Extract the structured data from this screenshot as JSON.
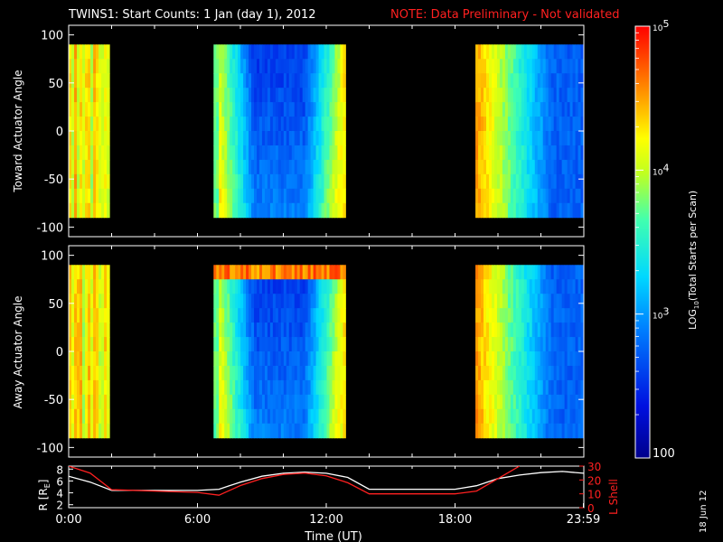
{
  "header": {
    "title": "TWINS1: Start Counts:  1 Jan (day   1), 2012",
    "note": "NOTE: Data Preliminary - Not validated"
  },
  "side_date": "18 Jun 12",
  "colorbar": {
    "title_main": "LOG",
    "title_sub": "10",
    "title_rest": "(Total Starts per Scan)",
    "ticks": [
      {
        "exp": "5"
      },
      {
        "exp": "4"
      },
      {
        "exp": "3"
      }
    ],
    "bottom_label": "100",
    "tick_base": "10",
    "log_range": [
      2,
      5
    ]
  },
  "chart_data": [
    {
      "type": "heatmap",
      "ylabel": "Toward Actuator Angle",
      "yticks": [
        "100",
        "50",
        "0",
        "-50",
        "-100"
      ],
      "ylim": [
        -110,
        110
      ],
      "data_ylim": [
        -90,
        90
      ],
      "xlim": [
        0,
        24
      ],
      "coverage_hours": [
        [
          0.0,
          1.9
        ],
        [
          6.75,
          12.9
        ],
        [
          18.95,
          23.98
        ]
      ],
      "description_values": "log10 counts roughly 2.7-3.9 (blue-cyan) mid-pass, rising to ~4.5 (orange-red) at pass edges"
    },
    {
      "type": "heatmap",
      "ylabel": "Away Actuator Angle",
      "yticks": [
        "100",
        "50",
        "0",
        "-50",
        "-100"
      ],
      "ylim": [
        -110,
        110
      ],
      "data_ylim": [
        -90,
        90
      ],
      "xlim": [
        0,
        24
      ],
      "coverage_hours": [
        [
          0.0,
          1.9
        ],
        [
          6.75,
          12.9
        ],
        [
          18.95,
          23.98
        ]
      ]
    },
    {
      "type": "line",
      "xlabel": "Time (UT)",
      "xticks": [
        "0:00",
        "6:00",
        "12:00",
        "18:00",
        "23:59"
      ],
      "left_axis": {
        "label": "R [R",
        "label_sub": "E",
        "label_end": "]",
        "ticks": [
          "8",
          "6",
          "4",
          "2"
        ],
        "ylim": [
          1.5,
          8.5
        ]
      },
      "right_axis": {
        "label": "L Shell",
        "ticks": [
          "30",
          "20",
          "10",
          "0"
        ],
        "ylim": [
          0,
          30
        ]
      },
      "series": [
        {
          "color": "#ffffff",
          "axis": "left",
          "x": [
            0,
            1,
            2,
            4,
            6,
            7,
            8,
            9,
            10,
            11,
            12,
            13,
            14,
            16,
            18,
            19,
            20,
            21,
            22,
            23,
            24
          ],
          "y": [
            6.8,
            5.8,
            4.4,
            4.4,
            4.4,
            4.6,
            5.8,
            6.8,
            7.3,
            7.5,
            7.3,
            6.6,
            4.6,
            4.6,
            4.6,
            5.2,
            6.4,
            7.0,
            7.4,
            7.6,
            7.3
          ]
        },
        {
          "color": "#ff2020",
          "axis": "right",
          "x": [
            0,
            1,
            2,
            4,
            6,
            7,
            8,
            9,
            10,
            11,
            12,
            13,
            14,
            16,
            18,
            19,
            20,
            21
          ],
          "y": [
            30,
            25,
            13,
            12,
            11,
            9,
            16,
            21,
            24,
            25,
            23,
            18,
            10,
            10,
            10,
            12,
            21,
            30
          ]
        }
      ]
    }
  ]
}
